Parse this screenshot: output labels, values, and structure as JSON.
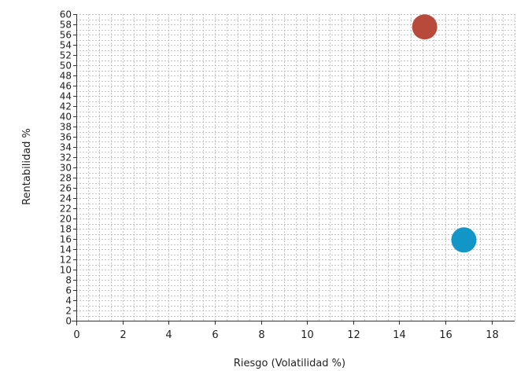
{
  "chart_data": {
    "type": "scatter",
    "xlabel": "Riesgo (Volatilidad %)",
    "ylabel": "Rentabilidad %",
    "xlim": [
      0,
      19
    ],
    "ylim": [
      0,
      60
    ],
    "x_ticks": [
      0,
      2,
      4,
      6,
      8,
      10,
      12,
      14,
      16,
      18
    ],
    "y_ticks": [
      0,
      2,
      4,
      6,
      8,
      10,
      12,
      14,
      16,
      18,
      20,
      22,
      24,
      26,
      28,
      30,
      32,
      34,
      36,
      38,
      40,
      42,
      44,
      46,
      48,
      50,
      52,
      54,
      56,
      58,
      60
    ],
    "x_tick_labels": [
      "0",
      "2",
      "4",
      "6",
      "8",
      "10",
      "12",
      "14",
      "16",
      "18"
    ],
    "y_tick_labels": [
      "0",
      "2",
      "4",
      "6",
      "8",
      "10",
      "12",
      "14",
      "16",
      "18",
      "20",
      "22",
      "24",
      "26",
      "28",
      "30",
      "32",
      "34",
      "36",
      "38",
      "40",
      "42",
      "44",
      "46",
      "48",
      "50",
      "52",
      "54",
      "56",
      "58",
      "60"
    ],
    "grid": true,
    "legend": "none",
    "points": [
      {
        "x": 15.1,
        "y": 57.5,
        "color": "#b84a3b"
      },
      {
        "x": 16.8,
        "y": 15.8,
        "color": "#1296c8"
      }
    ]
  }
}
